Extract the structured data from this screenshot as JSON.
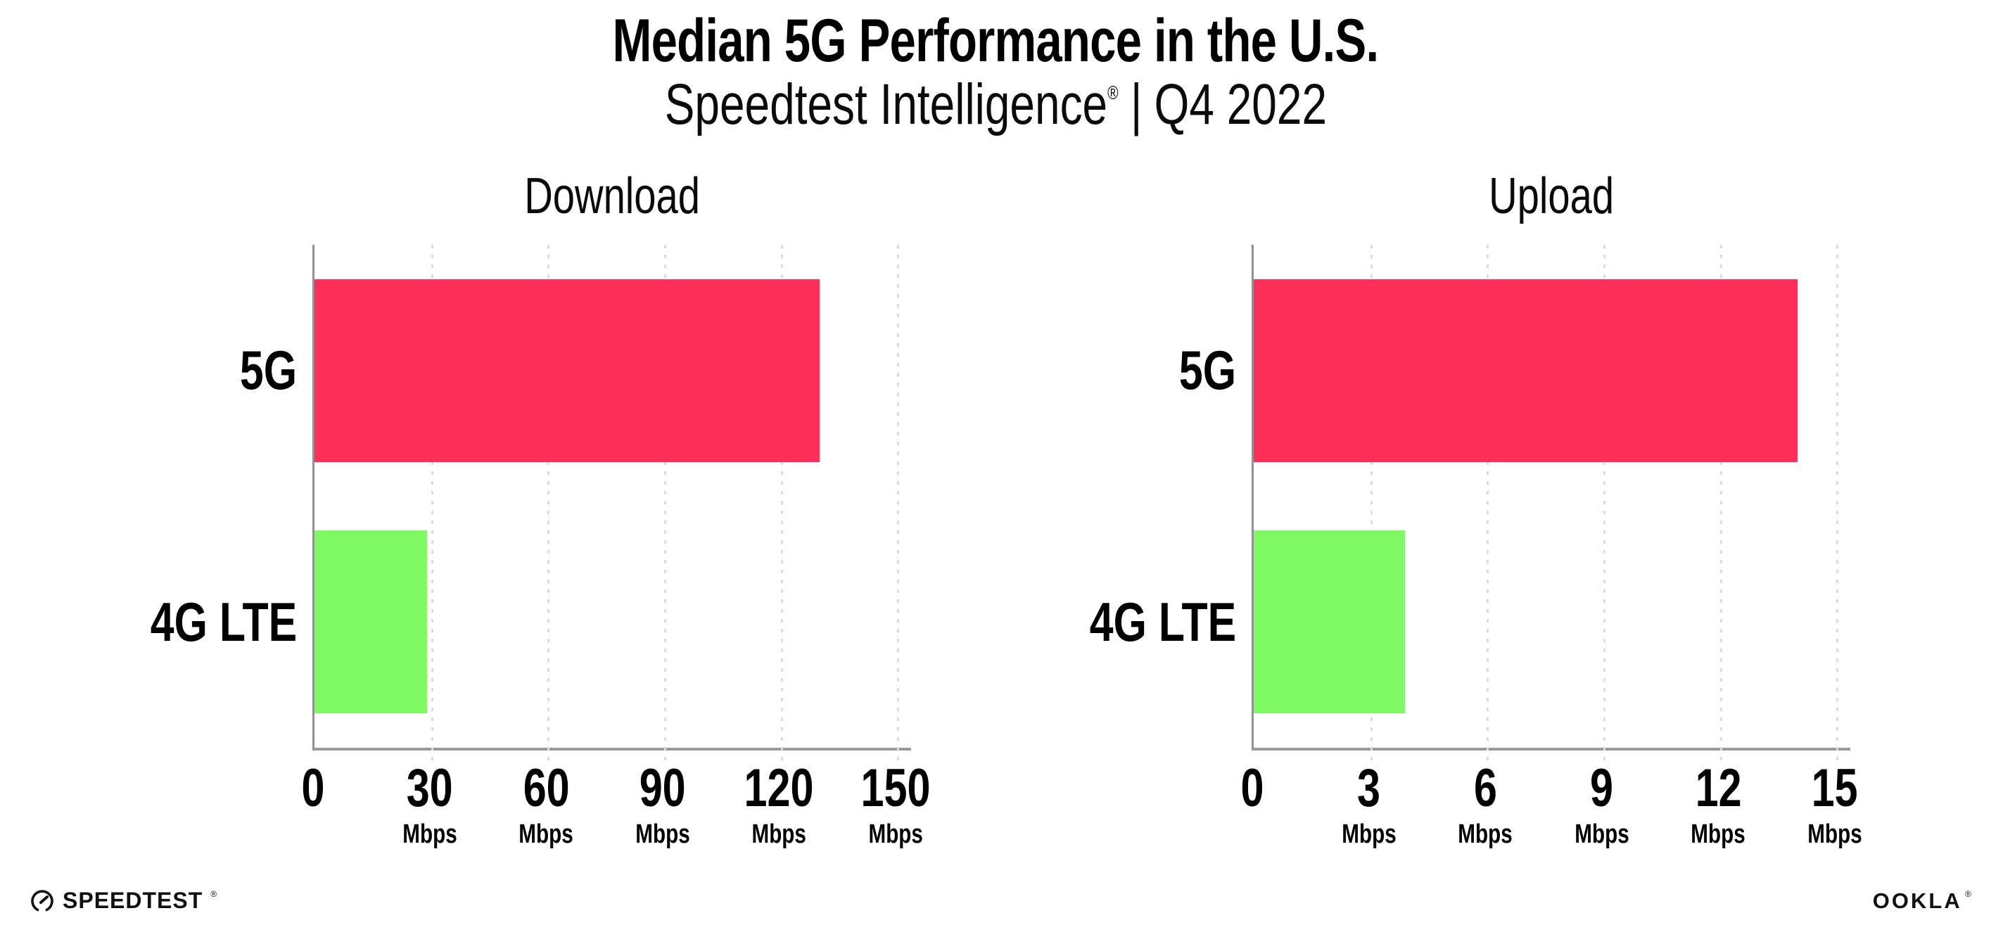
{
  "header": {
    "title": "Median 5G Performance in the U.S.",
    "subtitle_brand": "Speedtest Intelligence",
    "subtitle_reg": "®",
    "subtitle_sep": "|",
    "subtitle_period": "Q4 2022"
  },
  "colors": {
    "bar_5g": "#FD2E57",
    "bar_4g_lte": "#80FA64",
    "gridline": "#DADBE8",
    "axis": "#919196",
    "text": "#000000"
  },
  "chart_data": [
    {
      "type": "bar",
      "orientation": "horizontal",
      "title": "Download",
      "categories": [
        "5G",
        "4G LTE"
      ],
      "values": [
        130,
        29
      ],
      "unit": "Mbps",
      "xlim": [
        0,
        150
      ],
      "ticks": [
        0,
        30,
        60,
        90,
        120,
        150
      ],
      "tick_unit": "Mbps",
      "grid": "dotted-vertical",
      "legend": "none",
      "bar_colors": [
        "#FD2E57",
        "#80FA64"
      ]
    },
    {
      "type": "bar",
      "orientation": "horizontal",
      "title": "Upload",
      "categories": [
        "5G",
        "4G LTE"
      ],
      "values": [
        14,
        3.9
      ],
      "unit": "Mbps",
      "xlim": [
        0,
        15
      ],
      "ticks": [
        0,
        3,
        6,
        9,
        12,
        15
      ],
      "tick_unit": "Mbps",
      "grid": "dotted-vertical",
      "legend": "none",
      "bar_colors": [
        "#FD2E57",
        "#80FA64"
      ]
    }
  ],
  "footer": {
    "speedtest_label": "SPEEDTEST",
    "speedtest_mark": "®",
    "ookla_label": "OOKLA",
    "ookla_mark": "®"
  }
}
